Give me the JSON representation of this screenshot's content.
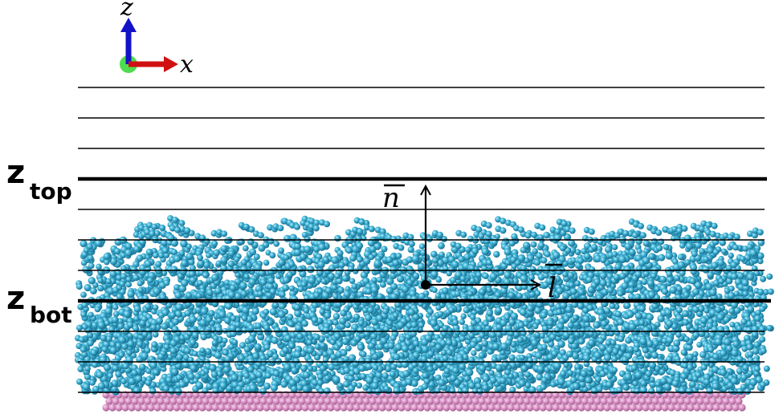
{
  "axes": {
    "z_label": "z",
    "x_label": "x",
    "z_color": "#1212c8",
    "x_color": "#d01010",
    "y_color": "#4fdc4f"
  },
  "boundaries": {
    "top_main": "z",
    "top_sub": "top",
    "bot_main": "z",
    "bot_sub": "bot"
  },
  "vectors": {
    "normal_label": "n",
    "tangent_label": "l"
  },
  "colors": {
    "liquid": "#3aaed0",
    "liquid_shade": "#1f7ea0",
    "substrate": "#d88fc4",
    "line": "#000000"
  }
}
